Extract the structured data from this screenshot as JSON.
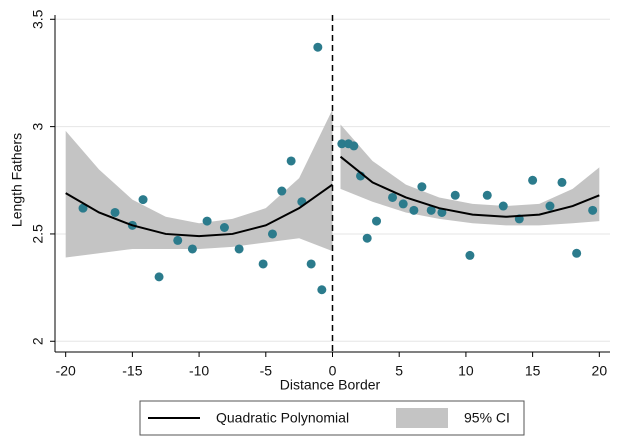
{
  "chart_data": {
    "type": "rd-scatter",
    "xlabel": "Distance Border",
    "ylabel": "Length Fathers",
    "xlim": [
      -20.8,
      20.8
    ],
    "ylim": [
      1.95,
      3.52
    ],
    "xticks": [
      -20,
      -15,
      -10,
      -5,
      0,
      5,
      10,
      15,
      20
    ],
    "yticks": [
      2,
      2.5,
      3,
      3.5
    ],
    "grid": true,
    "cutoff": 0,
    "points": {
      "color": "#2b7b8c",
      "x": [
        -18.7,
        -16.3,
        -15.0,
        -14.2,
        -13.0,
        -11.6,
        -10.5,
        -9.4,
        -8.1,
        -7.0,
        -5.2,
        -4.5,
        -3.8,
        -3.1,
        -2.3,
        -1.6,
        -1.1,
        -0.8,
        0.7,
        1.2,
        1.6,
        2.1,
        2.6,
        3.3,
        4.5,
        5.3,
        6.1,
        6.7,
        7.4,
        8.2,
        9.2,
        10.3,
        11.6,
        12.8,
        14.0,
        15.0,
        16.3,
        17.2,
        18.3,
        19.5
      ],
      "y": [
        2.62,
        2.6,
        2.54,
        2.66,
        2.3,
        2.47,
        2.43,
        2.56,
        2.53,
        2.43,
        2.36,
        2.5,
        2.7,
        2.84,
        2.65,
        2.36,
        3.37,
        2.24,
        2.92,
        2.92,
        2.91,
        2.77,
        2.48,
        2.56,
        2.67,
        2.64,
        2.61,
        2.72,
        2.61,
        2.6,
        2.68,
        2.4,
        2.68,
        2.63,
        2.57,
        2.75,
        2.63,
        2.74,
        2.41,
        2.61
      ]
    },
    "fit_name": "Quadratic Polynomial",
    "fit_color": "#000000",
    "ci_name": "95% CI",
    "ci_color": "#c4c4c4",
    "fits": [
      {
        "x": [
          -20,
          -17.5,
          -15,
          -12.5,
          -10,
          -7.5,
          -5,
          -2.5,
          0
        ],
        "y": [
          2.69,
          2.6,
          2.54,
          2.5,
          2.49,
          2.5,
          2.54,
          2.62,
          2.73
        ],
        "upper": [
          2.98,
          2.8,
          2.66,
          2.58,
          2.55,
          2.57,
          2.62,
          2.76,
          3.08
        ],
        "lower": [
          2.39,
          2.41,
          2.43,
          2.43,
          2.43,
          2.44,
          2.46,
          2.48,
          2.42
        ]
      },
      {
        "x": [
          0.6,
          3,
          5.5,
          8,
          10.5,
          13,
          15.5,
          18,
          20
        ],
        "y": [
          2.86,
          2.74,
          2.67,
          2.62,
          2.59,
          2.58,
          2.59,
          2.63,
          2.68
        ],
        "upper": [
          3.01,
          2.84,
          2.73,
          2.67,
          2.64,
          2.63,
          2.64,
          2.71,
          2.81
        ],
        "lower": [
          2.71,
          2.65,
          2.6,
          2.57,
          2.55,
          2.54,
          2.54,
          2.55,
          2.56
        ]
      }
    ]
  }
}
